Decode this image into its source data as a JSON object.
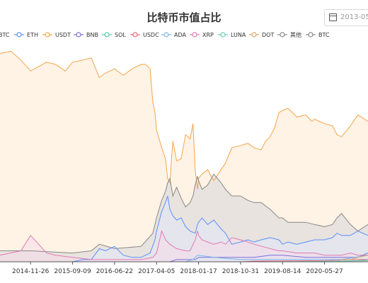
{
  "title": "比特币市值占比",
  "date_picker": {
    "value": "2013-05-",
    "icon": "calendar-icon"
  },
  "chart_data": {
    "type": "area",
    "title": "比特币市值占比",
    "xlabel": "",
    "ylabel": "",
    "ylim": [
      0,
      100
    ],
    "x_range": [
      "2014-05-01",
      "2021-03-20"
    ],
    "x_ticks": [
      "2014-11-26",
      "2015-09-09",
      "2016-06-22",
      "2017-04-05",
      "2018-01-17",
      "2018-10-31",
      "2019-08-14",
      "2020-05-27"
    ],
    "grid": false,
    "legend_position": "top",
    "legend": [
      "BTC",
      "ETH",
      "USDT",
      "BNB",
      "SOL",
      "USDC",
      "ADA",
      "XRP",
      "LUNA",
      "DOT",
      "其他",
      "BTC"
    ],
    "series": [
      {
        "name": "USDT",
        "color": "#f5a54b",
        "fill": "#fde9d0",
        "fill_opacity": 0.55,
        "points": [
          [
            "2014-05-01",
            95
          ],
          [
            "2014-07-15",
            96
          ],
          [
            "2014-09-20",
            92
          ],
          [
            "2014-11-26",
            87
          ],
          [
            "2015-01-20",
            89
          ],
          [
            "2015-03-15",
            91
          ],
          [
            "2015-05-15",
            90
          ],
          [
            "2015-07-20",
            87
          ],
          [
            "2015-09-09",
            91
          ],
          [
            "2015-11-20",
            92
          ],
          [
            "2016-01-15",
            93
          ],
          [
            "2016-03-10",
            84
          ],
          [
            "2016-04-20",
            86
          ],
          [
            "2016-06-22",
            88
          ],
          [
            "2016-08-20",
            85
          ],
          [
            "2016-10-20",
            88
          ],
          [
            "2016-12-20",
            90
          ],
          [
            "2017-01-20",
            90
          ],
          [
            "2017-02-20",
            88
          ],
          [
            "2017-03-10",
            73
          ],
          [
            "2017-03-25",
            68
          ],
          [
            "2017-04-05",
            60
          ],
          [
            "2017-05-10",
            52
          ],
          [
            "2017-06-05",
            47
          ],
          [
            "2017-06-20",
            38
          ],
          [
            "2017-07-05",
            36
          ],
          [
            "2017-07-25",
            55
          ],
          [
            "2017-08-20",
            46
          ],
          [
            "2017-09-20",
            47
          ],
          [
            "2017-10-20",
            58
          ],
          [
            "2017-11-20",
            56
          ],
          [
            "2017-12-10",
            63
          ],
          [
            "2017-12-25",
            42
          ],
          [
            "2018-01-10",
            33
          ],
          [
            "2018-01-17",
            38
          ],
          [
            "2018-02-10",
            40
          ],
          [
            "2018-03-20",
            42
          ],
          [
            "2018-05-01",
            37
          ],
          [
            "2018-06-20",
            42
          ],
          [
            "2018-07-20",
            45
          ],
          [
            "2018-09-01",
            52
          ],
          [
            "2018-10-31",
            53
          ],
          [
            "2018-12-20",
            54
          ],
          [
            "2019-02-01",
            52
          ],
          [
            "2019-03-20",
            51
          ],
          [
            "2019-04-20",
            55
          ],
          [
            "2019-05-20",
            57
          ],
          [
            "2019-06-20",
            61
          ],
          [
            "2019-07-20",
            68
          ],
          [
            "2019-08-14",
            69
          ],
          [
            "2019-09-20",
            70
          ],
          [
            "2019-11-20",
            66
          ],
          [
            "2020-01-20",
            67
          ],
          [
            "2020-03-01",
            64
          ],
          [
            "2020-03-20",
            65
          ],
          [
            "2020-05-27",
            63
          ],
          [
            "2020-07-20",
            62
          ],
          [
            "2020-08-20",
            58
          ],
          [
            "2020-09-20",
            57
          ],
          [
            "2020-11-20",
            62
          ],
          [
            "2021-01-10",
            67
          ],
          [
            "2021-03-20",
            64
          ]
        ]
      },
      {
        "name": "其他",
        "color": "#888888",
        "fill": "#d8d8d8",
        "fill_opacity": 0.6,
        "points": [
          [
            "2014-05-01",
            5
          ],
          [
            "2014-11-26",
            5
          ],
          [
            "2015-09-09",
            4
          ],
          [
            "2016-01-15",
            5
          ],
          [
            "2016-03-10",
            8
          ],
          [
            "2016-06-22",
            6
          ],
          [
            "2016-12-20",
            7
          ],
          [
            "2017-03-10",
            13
          ],
          [
            "2017-04-05",
            20
          ],
          [
            "2017-05-10",
            28
          ],
          [
            "2017-06-05",
            32
          ],
          [
            "2017-06-20",
            36
          ],
          [
            "2017-07-05",
            38
          ],
          [
            "2017-07-25",
            30
          ],
          [
            "2017-08-20",
            34
          ],
          [
            "2017-09-20",
            29
          ],
          [
            "2017-10-20",
            25
          ],
          [
            "2017-11-20",
            27
          ],
          [
            "2017-12-10",
            30
          ],
          [
            "2017-12-25",
            35
          ],
          [
            "2018-01-10",
            39
          ],
          [
            "2018-01-17",
            37
          ],
          [
            "2018-02-10",
            33
          ],
          [
            "2018-03-20",
            35
          ],
          [
            "2018-05-01",
            40
          ],
          [
            "2018-06-20",
            36
          ],
          [
            "2018-07-20",
            33
          ],
          [
            "2018-09-01",
            30
          ],
          [
            "2018-10-31",
            30
          ],
          [
            "2018-12-20",
            28
          ],
          [
            "2019-02-01",
            27
          ],
          [
            "2019-03-20",
            27
          ],
          [
            "2019-05-20",
            24
          ],
          [
            "2019-07-20",
            20
          ],
          [
            "2019-08-14",
            20
          ],
          [
            "2019-09-20",
            18
          ],
          [
            "2019-11-20",
            18
          ],
          [
            "2020-01-20",
            18
          ],
          [
            "2020-03-20",
            17
          ],
          [
            "2020-05-27",
            16
          ],
          [
            "2020-07-20",
            17
          ],
          [
            "2020-08-20",
            20
          ],
          [
            "2020-09-20",
            22
          ],
          [
            "2020-11-20",
            17
          ],
          [
            "2021-01-10",
            14
          ],
          [
            "2021-03-20",
            17
          ]
        ]
      },
      {
        "name": "ETH",
        "color": "#5b8ff9",
        "fill": "#dfe8fb",
        "fill_opacity": 0.5,
        "points": [
          [
            "2014-05-01",
            0
          ],
          [
            "2015-09-09",
            0
          ],
          [
            "2015-11-20",
            1
          ],
          [
            "2016-01-15",
            1
          ],
          [
            "2016-03-10",
            6
          ],
          [
            "2016-04-20",
            5
          ],
          [
            "2016-06-22",
            7
          ],
          [
            "2016-08-20",
            3
          ],
          [
            "2016-10-20",
            2
          ],
          [
            "2016-12-20",
            2
          ],
          [
            "2017-02-20",
            4
          ],
          [
            "2017-03-25",
            10
          ],
          [
            "2017-04-05",
            14
          ],
          [
            "2017-05-10",
            23
          ],
          [
            "2017-06-05",
            27
          ],
          [
            "2017-06-20",
            30
          ],
          [
            "2017-07-05",
            24
          ],
          [
            "2017-07-25",
            21
          ],
          [
            "2017-08-20",
            19
          ],
          [
            "2017-09-20",
            20
          ],
          [
            "2017-10-20",
            16
          ],
          [
            "2017-11-20",
            14
          ],
          [
            "2017-12-25",
            13
          ],
          [
            "2018-01-10",
            17
          ],
          [
            "2018-01-17",
            18
          ],
          [
            "2018-02-10",
            20
          ],
          [
            "2018-03-20",
            17
          ],
          [
            "2018-05-01",
            19
          ],
          [
            "2018-06-20",
            15
          ],
          [
            "2018-07-20",
            13
          ],
          [
            "2018-09-01",
            8
          ],
          [
            "2018-10-31",
            9
          ],
          [
            "2018-12-20",
            10
          ],
          [
            "2019-02-01",
            9
          ],
          [
            "2019-03-20",
            10
          ],
          [
            "2019-05-20",
            11
          ],
          [
            "2019-07-20",
            10
          ],
          [
            "2019-08-14",
            8
          ],
          [
            "2019-09-20",
            9
          ],
          [
            "2019-11-20",
            8
          ],
          [
            "2020-01-20",
            9
          ],
          [
            "2020-03-20",
            10
          ],
          [
            "2020-05-27",
            10
          ],
          [
            "2020-07-20",
            11
          ],
          [
            "2020-08-20",
            13
          ],
          [
            "2020-09-20",
            12
          ],
          [
            "2020-11-20",
            12
          ],
          [
            "2021-01-10",
            14
          ],
          [
            "2021-03-20",
            12
          ]
        ]
      },
      {
        "name": "XRP",
        "color": "#e07ab3",
        "fill": "#f6dbea",
        "fill_opacity": 0.5,
        "points": [
          [
            "2014-05-01",
            3
          ],
          [
            "2014-09-20",
            5
          ],
          [
            "2014-11-26",
            12
          ],
          [
            "2015-01-20",
            8
          ],
          [
            "2015-03-15",
            4
          ],
          [
            "2015-05-15",
            3
          ],
          [
            "2015-09-09",
            2
          ],
          [
            "2016-01-15",
            1
          ],
          [
            "2016-06-22",
            1
          ],
          [
            "2016-12-20",
            1
          ],
          [
            "2017-03-10",
            2
          ],
          [
            "2017-04-05",
            4
          ],
          [
            "2017-05-10",
            14
          ],
          [
            "2017-06-05",
            10
          ],
          [
            "2017-07-05",
            8
          ],
          [
            "2017-08-20",
            6
          ],
          [
            "2017-10-20",
            5
          ],
          [
            "2017-11-20",
            5
          ],
          [
            "2017-12-25",
            10
          ],
          [
            "2018-01-10",
            14
          ],
          [
            "2018-01-17",
            12
          ],
          [
            "2018-02-10",
            10
          ],
          [
            "2018-03-20",
            9
          ],
          [
            "2018-05-01",
            8
          ],
          [
            "2018-06-20",
            9
          ],
          [
            "2018-07-20",
            8
          ],
          [
            "2018-09-01",
            11
          ],
          [
            "2018-10-31",
            10
          ],
          [
            "2018-12-20",
            9
          ],
          [
            "2019-02-01",
            8
          ],
          [
            "2019-05-20",
            6
          ],
          [
            "2019-07-20",
            5
          ],
          [
            "2019-08-14",
            5
          ],
          [
            "2019-11-20",
            4
          ],
          [
            "2020-01-20",
            4
          ],
          [
            "2020-03-20",
            4
          ],
          [
            "2020-05-27",
            3
          ],
          [
            "2020-07-20",
            3
          ],
          [
            "2020-09-20",
            3
          ],
          [
            "2020-11-20",
            4
          ],
          [
            "2021-01-10",
            3
          ],
          [
            "2021-03-20",
            3
          ]
        ]
      },
      {
        "name": "BNB",
        "color": "#7c6fd6",
        "fill": "#e6e2f7",
        "fill_opacity": 0.4,
        "points": [
          [
            "2014-05-01",
            0
          ],
          [
            "2017-07-05",
            0
          ],
          [
            "2017-08-20",
            1
          ],
          [
            "2017-12-25",
            1
          ],
          [
            "2018-01-17",
            2
          ],
          [
            "2018-05-01",
            2
          ],
          [
            "2018-09-01",
            2
          ],
          [
            "2018-10-31",
            2
          ],
          [
            "2019-02-01",
            2
          ],
          [
            "2019-05-20",
            3
          ],
          [
            "2019-08-14",
            3
          ],
          [
            "2020-01-20",
            2
          ],
          [
            "2020-05-27",
            2
          ],
          [
            "2020-09-20",
            2
          ],
          [
            "2021-01-10",
            2
          ],
          [
            "2021-03-20",
            4
          ]
        ]
      },
      {
        "name": "SOL",
        "color": "#5ac8a8",
        "fill": "#d9f3ea",
        "fill_opacity": 0.3,
        "points": [
          [
            "2014-05-01",
            0
          ],
          [
            "2020-05-27",
            0
          ],
          [
            "2020-09-20",
            0.3
          ],
          [
            "2021-01-10",
            0.5
          ],
          [
            "2021-03-20",
            1
          ]
        ]
      },
      {
        "name": "USDC",
        "color": "#e8697b",
        "fill": "#fadde1",
        "fill_opacity": 0.3,
        "points": [
          [
            "2014-05-01",
            0
          ],
          [
            "2018-10-31",
            0
          ],
          [
            "2019-02-01",
            0.3
          ],
          [
            "2019-08-14",
            0.4
          ],
          [
            "2020-05-27",
            0.5
          ],
          [
            "2020-11-20",
            1
          ],
          [
            "2021-03-20",
            1
          ]
        ]
      },
      {
        "name": "ADA",
        "color": "#7ab6e8",
        "fill": "#dceefa",
        "fill_opacity": 0.3,
        "points": [
          [
            "2014-05-01",
            0
          ],
          [
            "2017-10-20",
            0
          ],
          [
            "2017-12-10",
            1
          ],
          [
            "2018-01-10",
            3
          ],
          [
            "2018-01-17",
            3
          ],
          [
            "2018-05-01",
            2
          ],
          [
            "2018-10-31",
            1
          ],
          [
            "2019-08-14",
            1
          ],
          [
            "2020-05-27",
            1
          ],
          [
            "2020-09-20",
            1
          ],
          [
            "2021-03-20",
            3
          ]
        ]
      },
      {
        "name": "DOT",
        "color": "#d9a46a",
        "fill": "#f6e8d6",
        "fill_opacity": 0.3,
        "points": [
          [
            "2014-05-01",
            0
          ],
          [
            "2020-08-20",
            0
          ],
          [
            "2020-09-20",
            1
          ],
          [
            "2020-11-20",
            1
          ],
          [
            "2021-01-10",
            2
          ],
          [
            "2021-03-20",
            3
          ]
        ]
      },
      {
        "name": "LUNA",
        "color": "#6dcab5",
        "fill": "#dff5ef",
        "fill_opacity": 0.3,
        "points": [
          [
            "2014-05-01",
            0
          ],
          [
            "2019-08-14",
            0
          ],
          [
            "2020-05-27",
            0.2
          ],
          [
            "2021-03-20",
            0.5
          ]
        ]
      }
    ]
  }
}
